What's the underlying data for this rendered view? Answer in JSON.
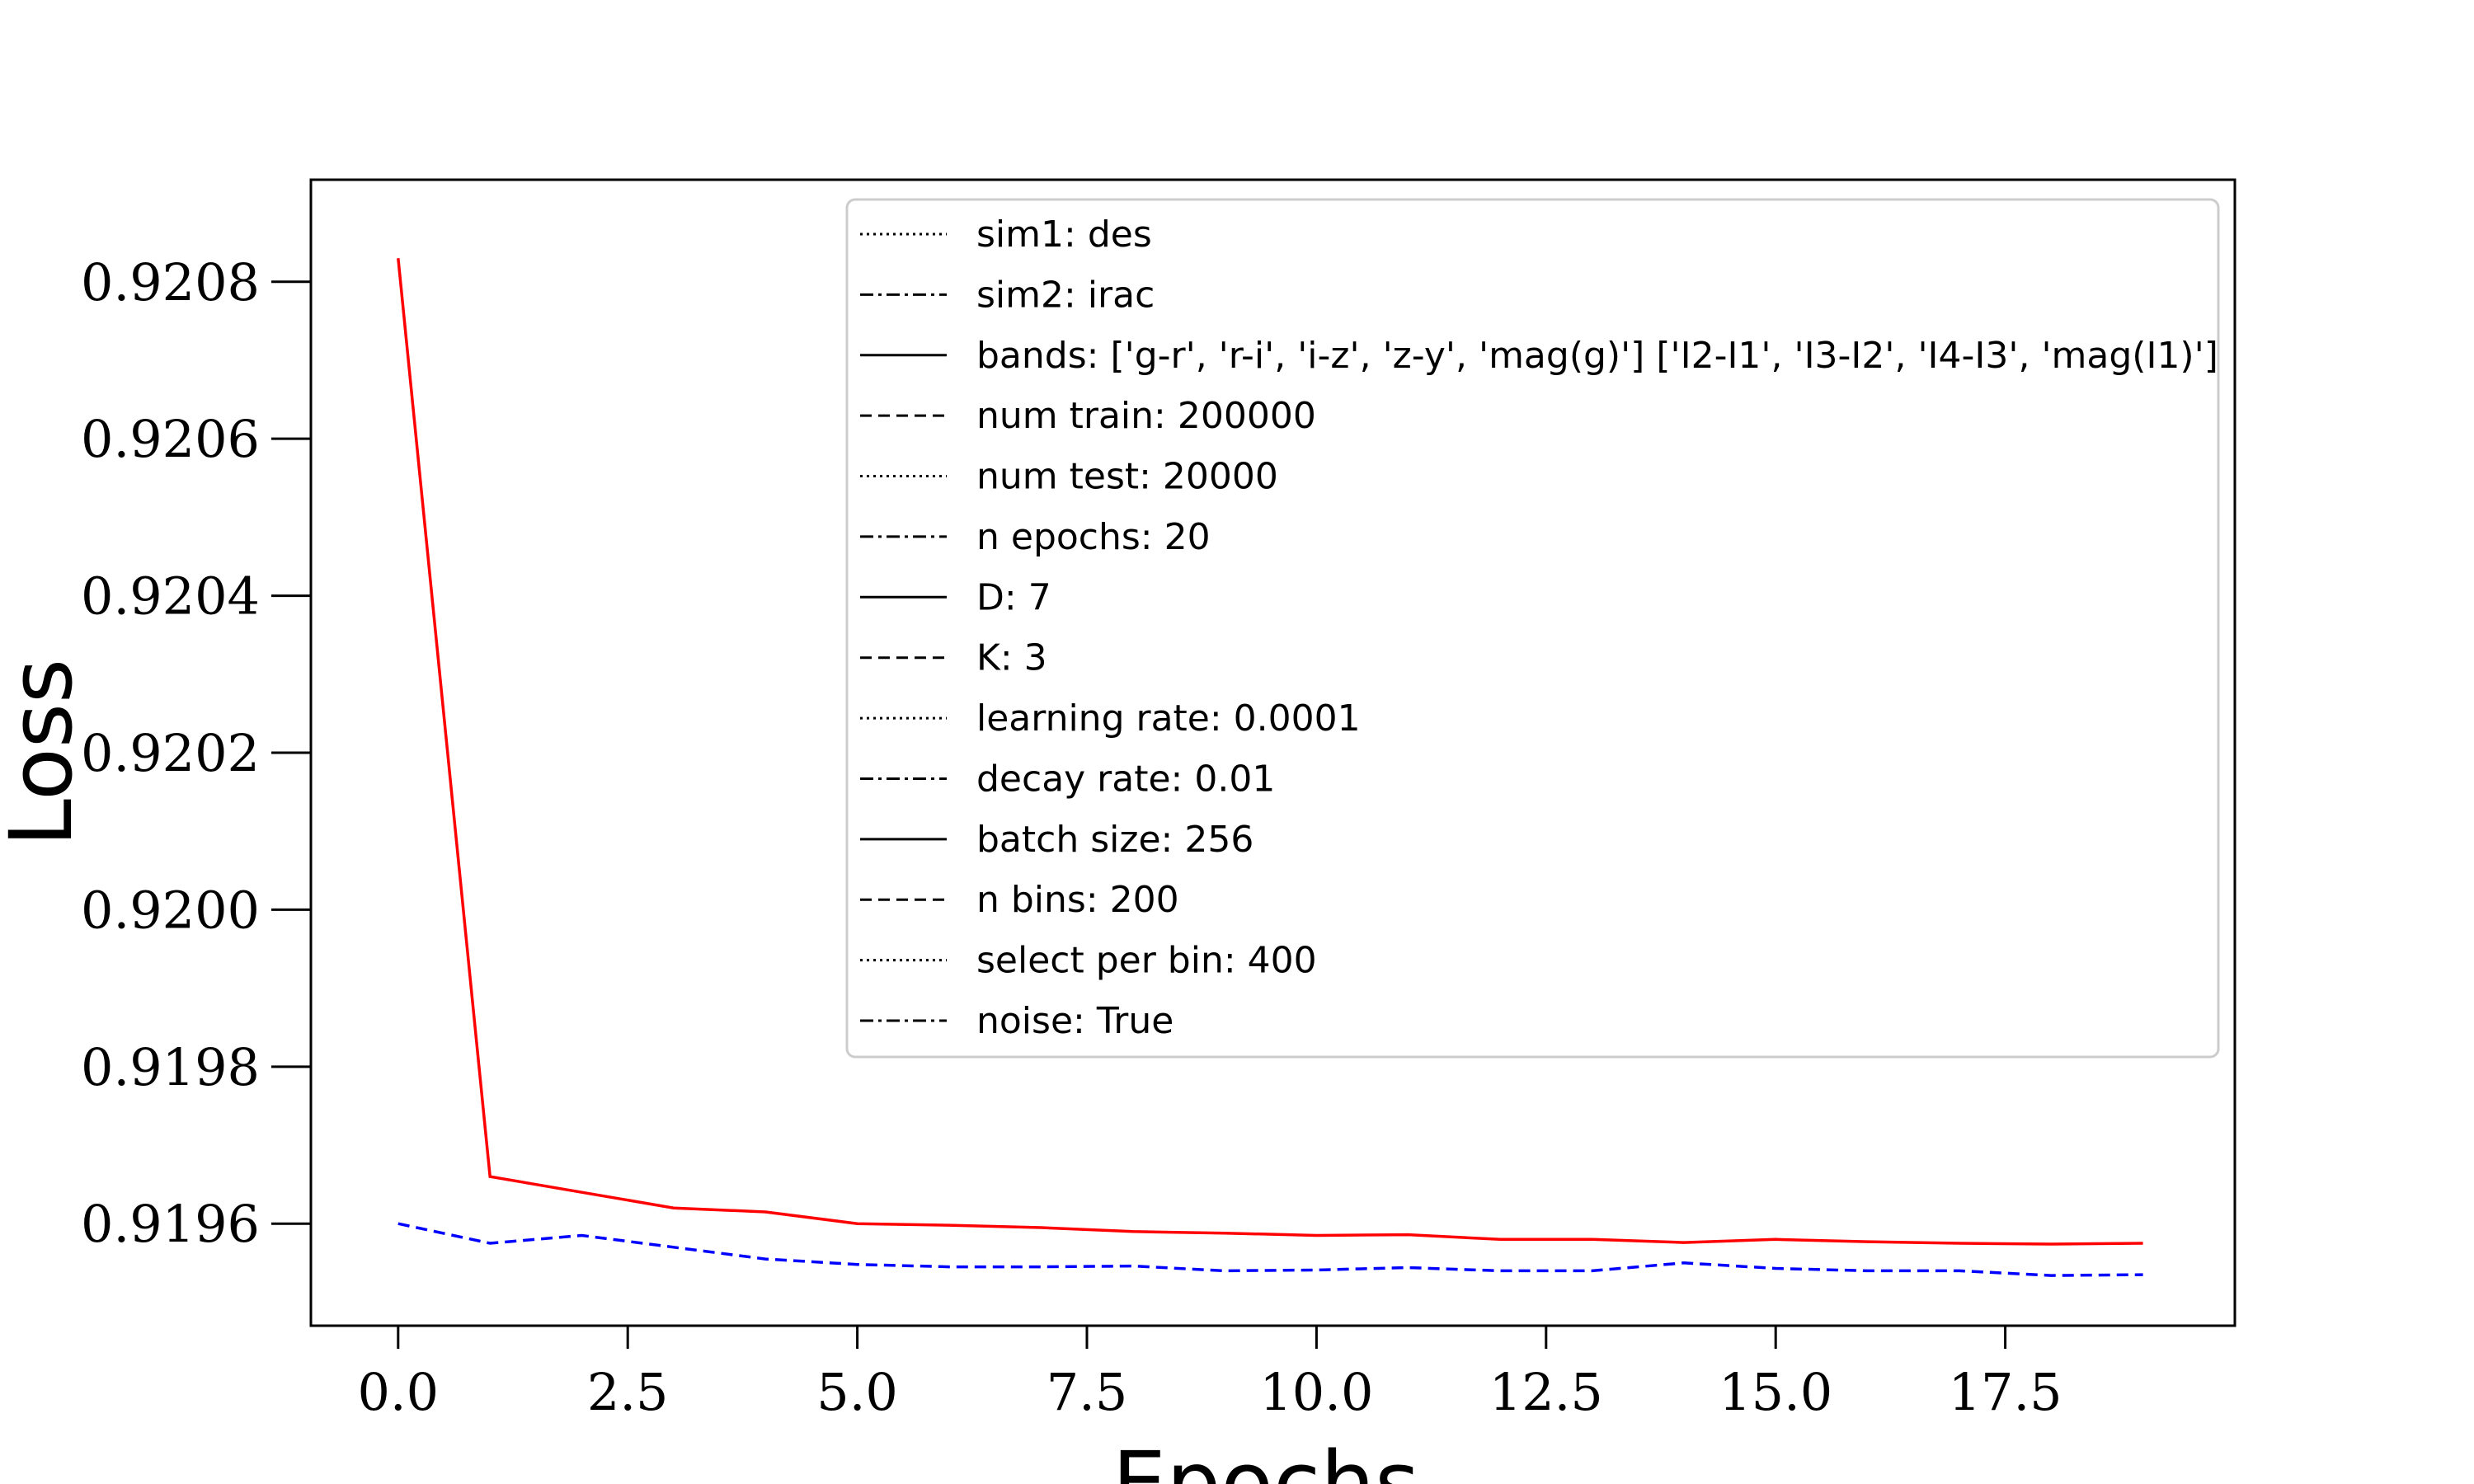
{
  "chart_data": {
    "type": "line",
    "title": "",
    "xlabel": "Epochs",
    "ylabel": "Loss",
    "xlim": [
      -0.95,
      20
    ],
    "ylim": [
      0.91947,
      0.92093
    ],
    "xticks": [
      0.0,
      2.5,
      5.0,
      7.5,
      10.0,
      12.5,
      15.0,
      17.5
    ],
    "xtick_labels": [
      "0.0",
      "2.5",
      "5.0",
      "7.5",
      "10.0",
      "12.5",
      "15.0",
      "17.5"
    ],
    "yticks": [
      0.9196,
      0.9198,
      0.92,
      0.9202,
      0.9204,
      0.9206,
      0.9208
    ],
    "ytick_labels": [
      "0.9196",
      "0.9198",
      "0.9200",
      "0.9202",
      "0.9204",
      "0.9206",
      "0.9208"
    ],
    "grid": false,
    "legend_position": "top-right",
    "x": [
      0,
      1,
      2,
      3,
      4,
      5,
      6,
      7,
      8,
      9,
      10,
      11,
      12,
      13,
      14,
      15,
      16,
      17,
      18,
      19
    ],
    "series": [
      {
        "color": "#ff0000",
        "style": "solid",
        "values": [
          0.92083,
          0.91966,
          0.91964,
          0.91962,
          0.919615,
          0.9196,
          0.919598,
          0.919595,
          0.91959,
          0.919588,
          0.919585,
          0.919586,
          0.91958,
          0.91958,
          0.919576,
          0.91958,
          0.919577,
          0.919575,
          0.919574,
          0.919575
        ]
      },
      {
        "color": "#0000ff",
        "style": "dashed",
        "values": [
          0.9196,
          0.919575,
          0.919585,
          0.91957,
          0.919555,
          0.919548,
          0.919545,
          0.919545,
          0.919546,
          0.91954,
          0.919541,
          0.919544,
          0.91954,
          0.91954,
          0.91955,
          0.919543,
          0.91954,
          0.91954,
          0.919534,
          0.919535
        ]
      }
    ],
    "legend_entries": [
      {
        "style": "dotted",
        "label": "sim1: des"
      },
      {
        "style": "dashdot",
        "label": "sim2: irac"
      },
      {
        "style": "solid",
        "label": "bands: ['g-r', 'r-i', 'i-z', 'z-y', 'mag(g)'] ['I2-I1', 'I3-I2', 'I4-I3', 'mag(I1)']"
      },
      {
        "style": "dashed",
        "label": "num train: 200000"
      },
      {
        "style": "dotted",
        "label": "num test: 20000"
      },
      {
        "style": "dashdot",
        "label": "n epochs: 20"
      },
      {
        "style": "solid",
        "label": "D: 7"
      },
      {
        "style": "dashed",
        "label": "K: 3"
      },
      {
        "style": "dotted",
        "label": "learning rate: 0.0001"
      },
      {
        "style": "dashdot",
        "label": "decay rate: 0.01"
      },
      {
        "style": "solid",
        "label": "batch size: 256"
      },
      {
        "style": "dashed",
        "label": "n bins: 200"
      },
      {
        "style": "dotted",
        "label": "select per bin: 400"
      },
      {
        "style": "dashdot",
        "label": "noise: True"
      }
    ]
  }
}
